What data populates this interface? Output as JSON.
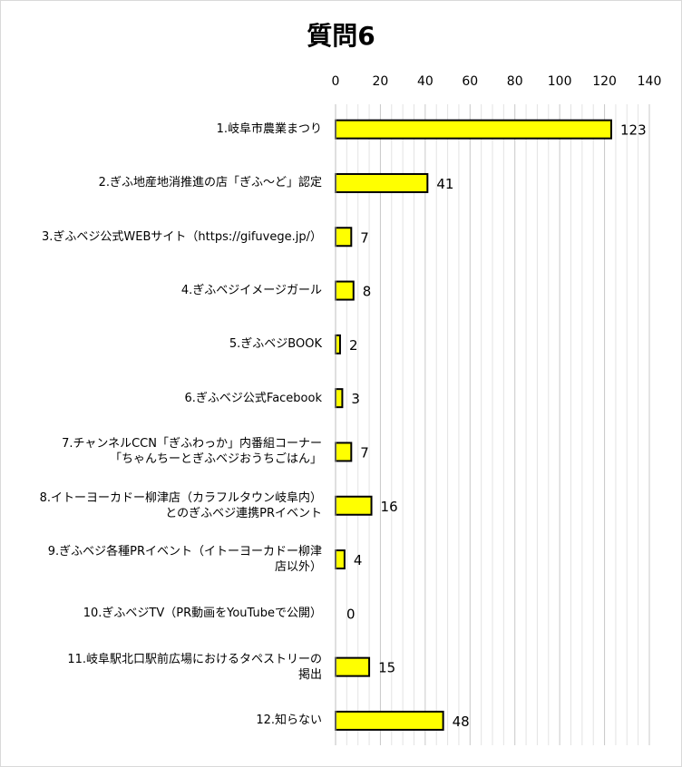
{
  "chart_data": {
    "type": "bar",
    "orientation": "horizontal",
    "title": "質問6",
    "xlim": [
      0,
      140
    ],
    "x_ticks": [
      0,
      20,
      40,
      60,
      80,
      100,
      120,
      140
    ],
    "grid": true,
    "bar_color": "#FFFF00",
    "bar_edge_color": "#000000",
    "categories": [
      "1.岐阜市農業まつり",
      "2.ぎふ地産地消推進の店「ぎふ～ど」認定",
      "3.ぎふベジ公式WEBサイト（https://gifuvege.jp/）",
      "4.ぎふベジイメージガール",
      "5.ぎふベジBOOK",
      "6.ぎふベジ公式Facebook",
      "7.チャンネルCCN「ぎふわっか」内番組コーナー\n「ちゃんちーとぎふベジおうちごはん」",
      "8.イトーヨーカドー柳津店（カラフルタウン岐阜内）\nとのぎふベジ連携PRイベント",
      "9.ぎふベジ各種PRイベント（イトーヨーカドー柳津\n店以外）",
      "10.ぎふベジTV（PR動画をYouTubeで公開）",
      "11.岐阜駅北口駅前広場におけるタペストリーの\n掲出",
      "12.知らない"
    ],
    "values": [
      123,
      41,
      7,
      8,
      2,
      3,
      7,
      16,
      4,
      0,
      15,
      48
    ]
  }
}
